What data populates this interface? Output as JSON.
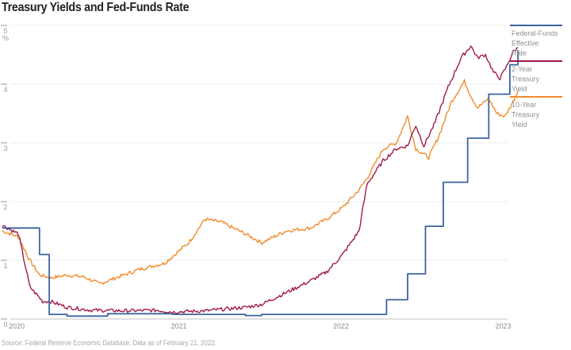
{
  "chart_data": {
    "type": "line",
    "title": "Treasury Yields and Fed-Funds Rate",
    "xlabel": "",
    "ylabel": "%",
    "ylim": [
      0,
      5
    ],
    "xlim": [
      2019.95,
      2023.13
    ],
    "grid": true,
    "legend_position": "right",
    "y_ticks": [
      "0",
      "1",
      "2",
      "3",
      "4",
      "5"
    ],
    "y_unit_label": "%",
    "x_ticks": [
      {
        "label": "2020",
        "value": 2020.0
      },
      {
        "label": "2021",
        "value": 2021.0
      },
      {
        "label": "2022",
        "value": 2022.0
      },
      {
        "label": "2023",
        "value": 2023.0
      }
    ],
    "series": [
      {
        "name": "Federal-Funds Effective Rate",
        "legend_lines": [
          "Federal-Funds",
          "Effective",
          "Rate"
        ],
        "color": "#3b64a0",
        "step": true,
        "x": [
          2019.95,
          2020.16,
          2020.18,
          2020.21,
          2020.24,
          2020.35,
          2020.6,
          2021.0,
          2021.45,
          2021.55,
          2022.18,
          2022.32,
          2022.45,
          2022.56,
          2022.67,
          2022.82,
          2022.95,
          2023.08,
          2023.13
        ],
        "values": [
          1.55,
          1.55,
          1.1,
          1.1,
          0.08,
          0.05,
          0.09,
          0.08,
          0.06,
          0.08,
          0.08,
          0.33,
          0.77,
          1.58,
          2.33,
          3.08,
          3.83,
          4.33,
          4.58
        ]
      },
      {
        "name": "2-Year Treasury Yield",
        "legend_lines": [
          "2-Year",
          "Treasury",
          "Yield"
        ],
        "color": "#a3194d",
        "x": [
          2019.95,
          2020.05,
          2020.12,
          2020.2,
          2020.25,
          2020.35,
          2020.5,
          2020.7,
          2020.9,
          2021.0,
          2021.2,
          2021.45,
          2021.55,
          2021.7,
          2021.85,
          2021.95,
          2022.05,
          2022.15,
          2022.2,
          2022.3,
          2022.38,
          2022.45,
          2022.5,
          2022.55,
          2022.62,
          2022.7,
          2022.78,
          2022.84,
          2022.88,
          2022.93,
          2022.98,
          2023.02,
          2023.06,
          2023.1,
          2023.13
        ],
        "values": [
          1.6,
          1.45,
          0.55,
          0.3,
          0.3,
          0.2,
          0.15,
          0.14,
          0.15,
          0.12,
          0.14,
          0.2,
          0.25,
          0.45,
          0.65,
          0.8,
          1.1,
          1.5,
          2.3,
          2.7,
          2.9,
          2.95,
          3.3,
          2.95,
          3.35,
          3.95,
          4.45,
          4.65,
          4.45,
          4.5,
          4.2,
          4.1,
          4.3,
          4.55,
          4.62
        ]
      },
      {
        "name": "10-Year Treasury Yield",
        "legend_lines": [
          "10-Year",
          "Treasury",
          "Yield"
        ],
        "color": "#f08c2a",
        "x": [
          2019.95,
          2020.05,
          2020.12,
          2020.18,
          2020.25,
          2020.35,
          2020.45,
          2020.55,
          2020.65,
          2020.8,
          2020.95,
          2021.1,
          2021.2,
          2021.3,
          2021.45,
          2021.55,
          2021.7,
          2021.85,
          2021.95,
          2022.05,
          2022.15,
          2022.2,
          2022.3,
          2022.38,
          2022.45,
          2022.5,
          2022.58,
          2022.64,
          2022.72,
          2022.8,
          2022.84,
          2022.88,
          2022.95,
          2023.0,
          2023.05,
          2023.1,
          2023.13
        ],
        "values": [
          1.5,
          1.4,
          1.0,
          0.75,
          0.7,
          0.75,
          0.72,
          0.6,
          0.7,
          0.85,
          0.95,
          1.3,
          1.7,
          1.65,
          1.45,
          1.3,
          1.5,
          1.55,
          1.7,
          1.9,
          2.2,
          2.4,
          2.9,
          3.0,
          3.45,
          2.9,
          2.75,
          3.1,
          3.7,
          4.05,
          3.8,
          3.6,
          3.75,
          3.5,
          3.45,
          3.7,
          3.88
        ]
      }
    ]
  },
  "footer": {
    "source": "Source: Federal Reserve Economic Database. Data as of February 21, 2022."
  }
}
